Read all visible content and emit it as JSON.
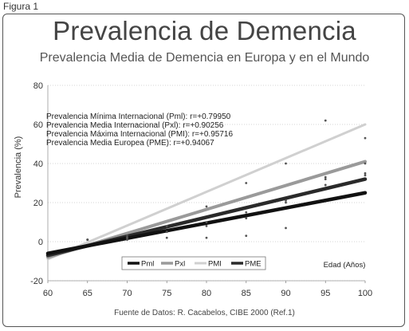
{
  "figure_label": "Figura 1",
  "source": "Fuente de Datos: R. Cacabelos, CIBE 2000 (Ref.1)",
  "chart_data": {
    "type": "line",
    "title": "Prevalencia de Demencia",
    "subtitle": "Prevalencia Media de Demencia en Europa  y en el Mundo",
    "xlabel": "Edad (Años)",
    "ylabel": "Prevalencia (%)",
    "xlim": [
      60,
      100
    ],
    "ylim": [
      -20,
      80
    ],
    "xticks": [
      60,
      65,
      70,
      75,
      80,
      85,
      90,
      95,
      100
    ],
    "yticks": [
      -20,
      0,
      20,
      40,
      60,
      80
    ],
    "grid": true,
    "legend_position": "bottom",
    "x": [
      60,
      100
    ],
    "series": [
      {
        "name": "Pml",
        "values": [
          -6,
          25
        ],
        "color": "#111111",
        "width": 4.5,
        "annotation": "Prevalencia Mínima Internacional (Pml): r=+0.79950",
        "points": [
          [
            65,
            1
          ],
          [
            70,
            1
          ],
          [
            75,
            2
          ],
          [
            80,
            2
          ],
          [
            85,
            3
          ],
          [
            90,
            7
          ],
          [
            95,
            29
          ],
          [
            100,
            35
          ]
        ]
      },
      {
        "name": "Pxl",
        "values": [
          -8,
          41
        ],
        "color": "#9a9a9a",
        "width": 4,
        "annotation": "Prevalencia Media Internacional (Pxl): r=+0.90256",
        "points": [
          [
            65,
            1
          ],
          [
            70,
            2
          ],
          [
            75,
            5
          ],
          [
            80,
            10
          ],
          [
            85,
            15
          ],
          [
            90,
            21
          ],
          [
            95,
            33
          ],
          [
            100,
            40
          ]
        ]
      },
      {
        "name": "PMI",
        "values": [
          -9,
          60
        ],
        "color": "#d0d0d0",
        "width": 3,
        "annotation": "Prevalencia Máxima Internacional (PMI): r=+0.95716",
        "points": [
          [
            65,
            1
          ],
          [
            70,
            3
          ],
          [
            75,
            8
          ],
          [
            80,
            18
          ],
          [
            85,
            30
          ],
          [
            90,
            40
          ],
          [
            95,
            62
          ],
          [
            100,
            53
          ]
        ]
      },
      {
        "name": "PME",
        "values": [
          -7,
          32
        ],
        "color": "#2a2a2a",
        "width": 4.5,
        "annotation": "Prevalencia Media Europea (PME): r=+0.94067",
        "points": [
          [
            65,
            1
          ],
          [
            70,
            2
          ],
          [
            75,
            5
          ],
          [
            80,
            8
          ],
          [
            85,
            12
          ],
          [
            90,
            20
          ],
          [
            95,
            32
          ],
          [
            100,
            34
          ]
        ]
      }
    ]
  }
}
